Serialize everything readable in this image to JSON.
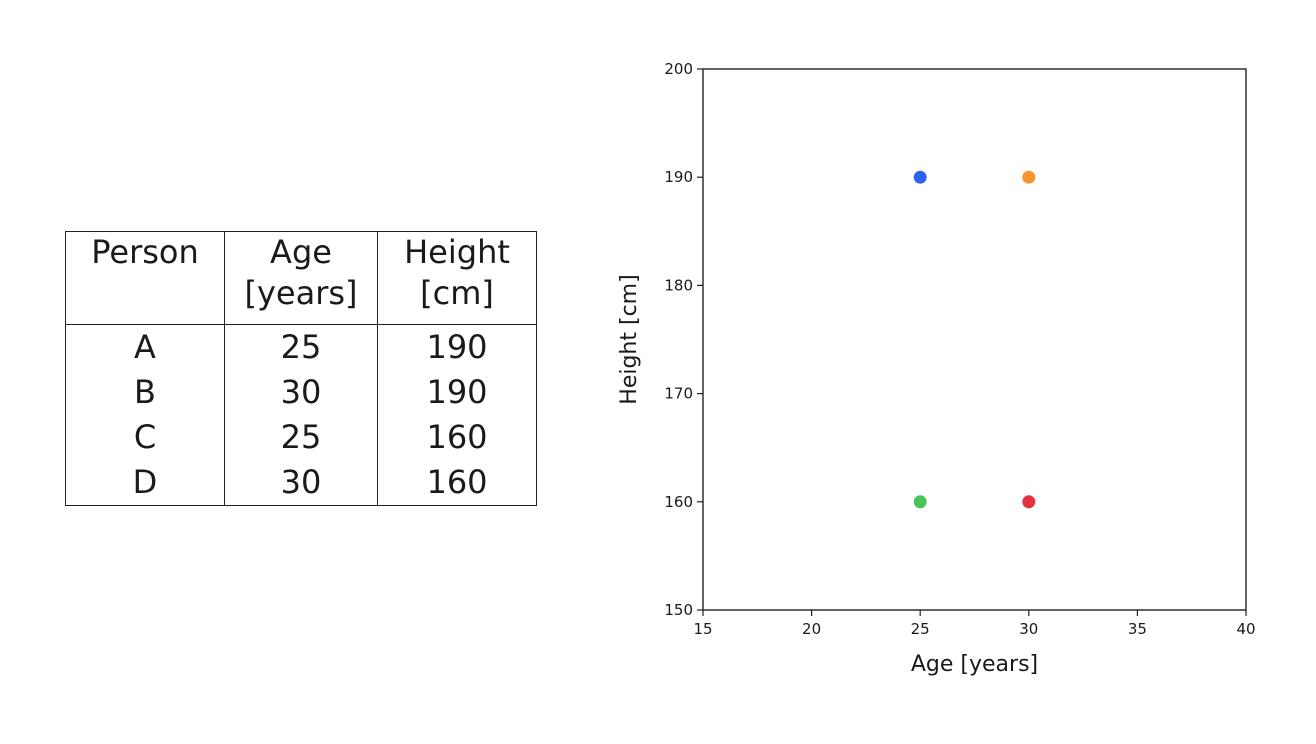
{
  "table": {
    "headers": [
      {
        "line1": "Person",
        "line2": ""
      },
      {
        "line1": "Age",
        "line2": "[years]"
      },
      {
        "line1": "Height",
        "line2": "[cm]"
      }
    ],
    "rows": [
      [
        "A",
        "25",
        "190"
      ],
      [
        "B",
        "30",
        "190"
      ],
      [
        "C",
        "25",
        "160"
      ],
      [
        "D",
        "30",
        "160"
      ]
    ]
  },
  "chart_data": {
    "type": "scatter",
    "title": "",
    "xlabel": "Age [years]",
    "ylabel": "Height [cm]",
    "xlim": [
      15,
      40
    ],
    "ylim": [
      150,
      200
    ],
    "xticks": [
      15,
      20,
      25,
      30,
      35,
      40
    ],
    "yticks": [
      150,
      160,
      170,
      180,
      190,
      200
    ],
    "grid": false,
    "points": [
      {
        "x": 25,
        "y": 190,
        "color": "#3060f0"
      },
      {
        "x": 30,
        "y": 190,
        "color": "#f79430"
      },
      {
        "x": 25,
        "y": 160,
        "color": "#46c455"
      },
      {
        "x": 30,
        "y": 160,
        "color": "#e3313f"
      }
    ]
  }
}
